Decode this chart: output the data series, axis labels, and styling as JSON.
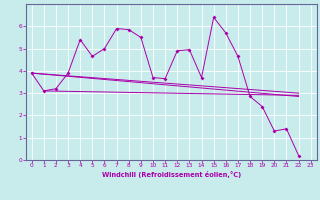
{
  "background_color": "#c8ecec",
  "grid_color": "#ffffff",
  "line_color": "#aa00aa",
  "spine_color": "#666699",
  "xlabel": "Windchill (Refroidissement éolien,°C)",
  "xlim": [
    -0.5,
    23.5
  ],
  "ylim": [
    0,
    7
  ],
  "yticks": [
    0,
    1,
    2,
    3,
    4,
    5,
    6
  ],
  "xticks": [
    0,
    1,
    2,
    3,
    4,
    5,
    6,
    7,
    8,
    9,
    10,
    11,
    12,
    13,
    14,
    15,
    16,
    17,
    18,
    19,
    20,
    21,
    22,
    23
  ],
  "series1_x": [
    0,
    1,
    2,
    3,
    4,
    5,
    6,
    7,
    8,
    9,
    10,
    11,
    12,
    13,
    14,
    15,
    16,
    17,
    18,
    19,
    20,
    21,
    22
  ],
  "series1_y": [
    3.9,
    3.1,
    3.2,
    3.9,
    5.4,
    4.65,
    5.0,
    5.9,
    5.85,
    5.5,
    3.7,
    3.65,
    4.9,
    4.95,
    3.7,
    6.4,
    5.7,
    4.65,
    2.85,
    2.4,
    1.3,
    1.4,
    0.2
  ],
  "series2_x": [
    0,
    22
  ],
  "series2_y": [
    3.9,
    2.85
  ],
  "series3_x": [
    0,
    22
  ],
  "series3_y": [
    3.9,
    3.0
  ],
  "series4_x": [
    1,
    22
  ],
  "series4_y": [
    3.1,
    2.9
  ]
}
